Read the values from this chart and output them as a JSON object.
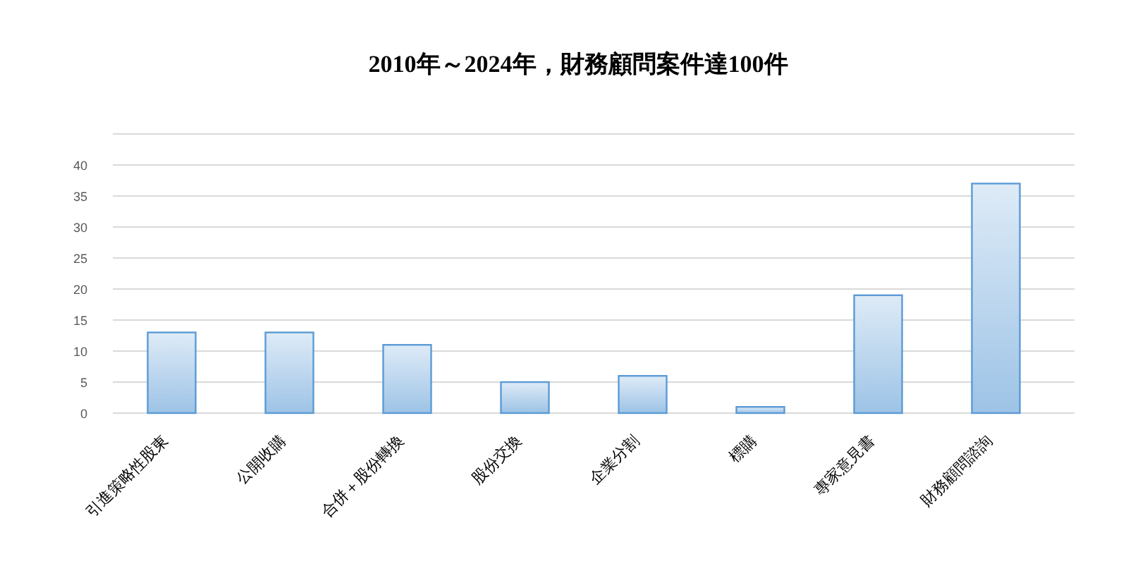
{
  "chart_data": {
    "type": "bar",
    "title": "2010年～2024年，財務顧問案件達100件",
    "categories": [
      "引進策略性股東",
      "公開收購",
      "合併＋股份轉換",
      "股份交換",
      "企業分割",
      "標購",
      "專家意見書",
      "財務顧問諮詢"
    ],
    "values": [
      13,
      13,
      11,
      5,
      6,
      1,
      19,
      37
    ],
    "color": "#5b9bd5",
    "ylim": [
      0,
      45
    ],
    "yticks": [
      0,
      5,
      10,
      15,
      20,
      25,
      30,
      35,
      40,
      {
        "value": 45,
        "label": null
      }
    ],
    "grid": "y"
  }
}
